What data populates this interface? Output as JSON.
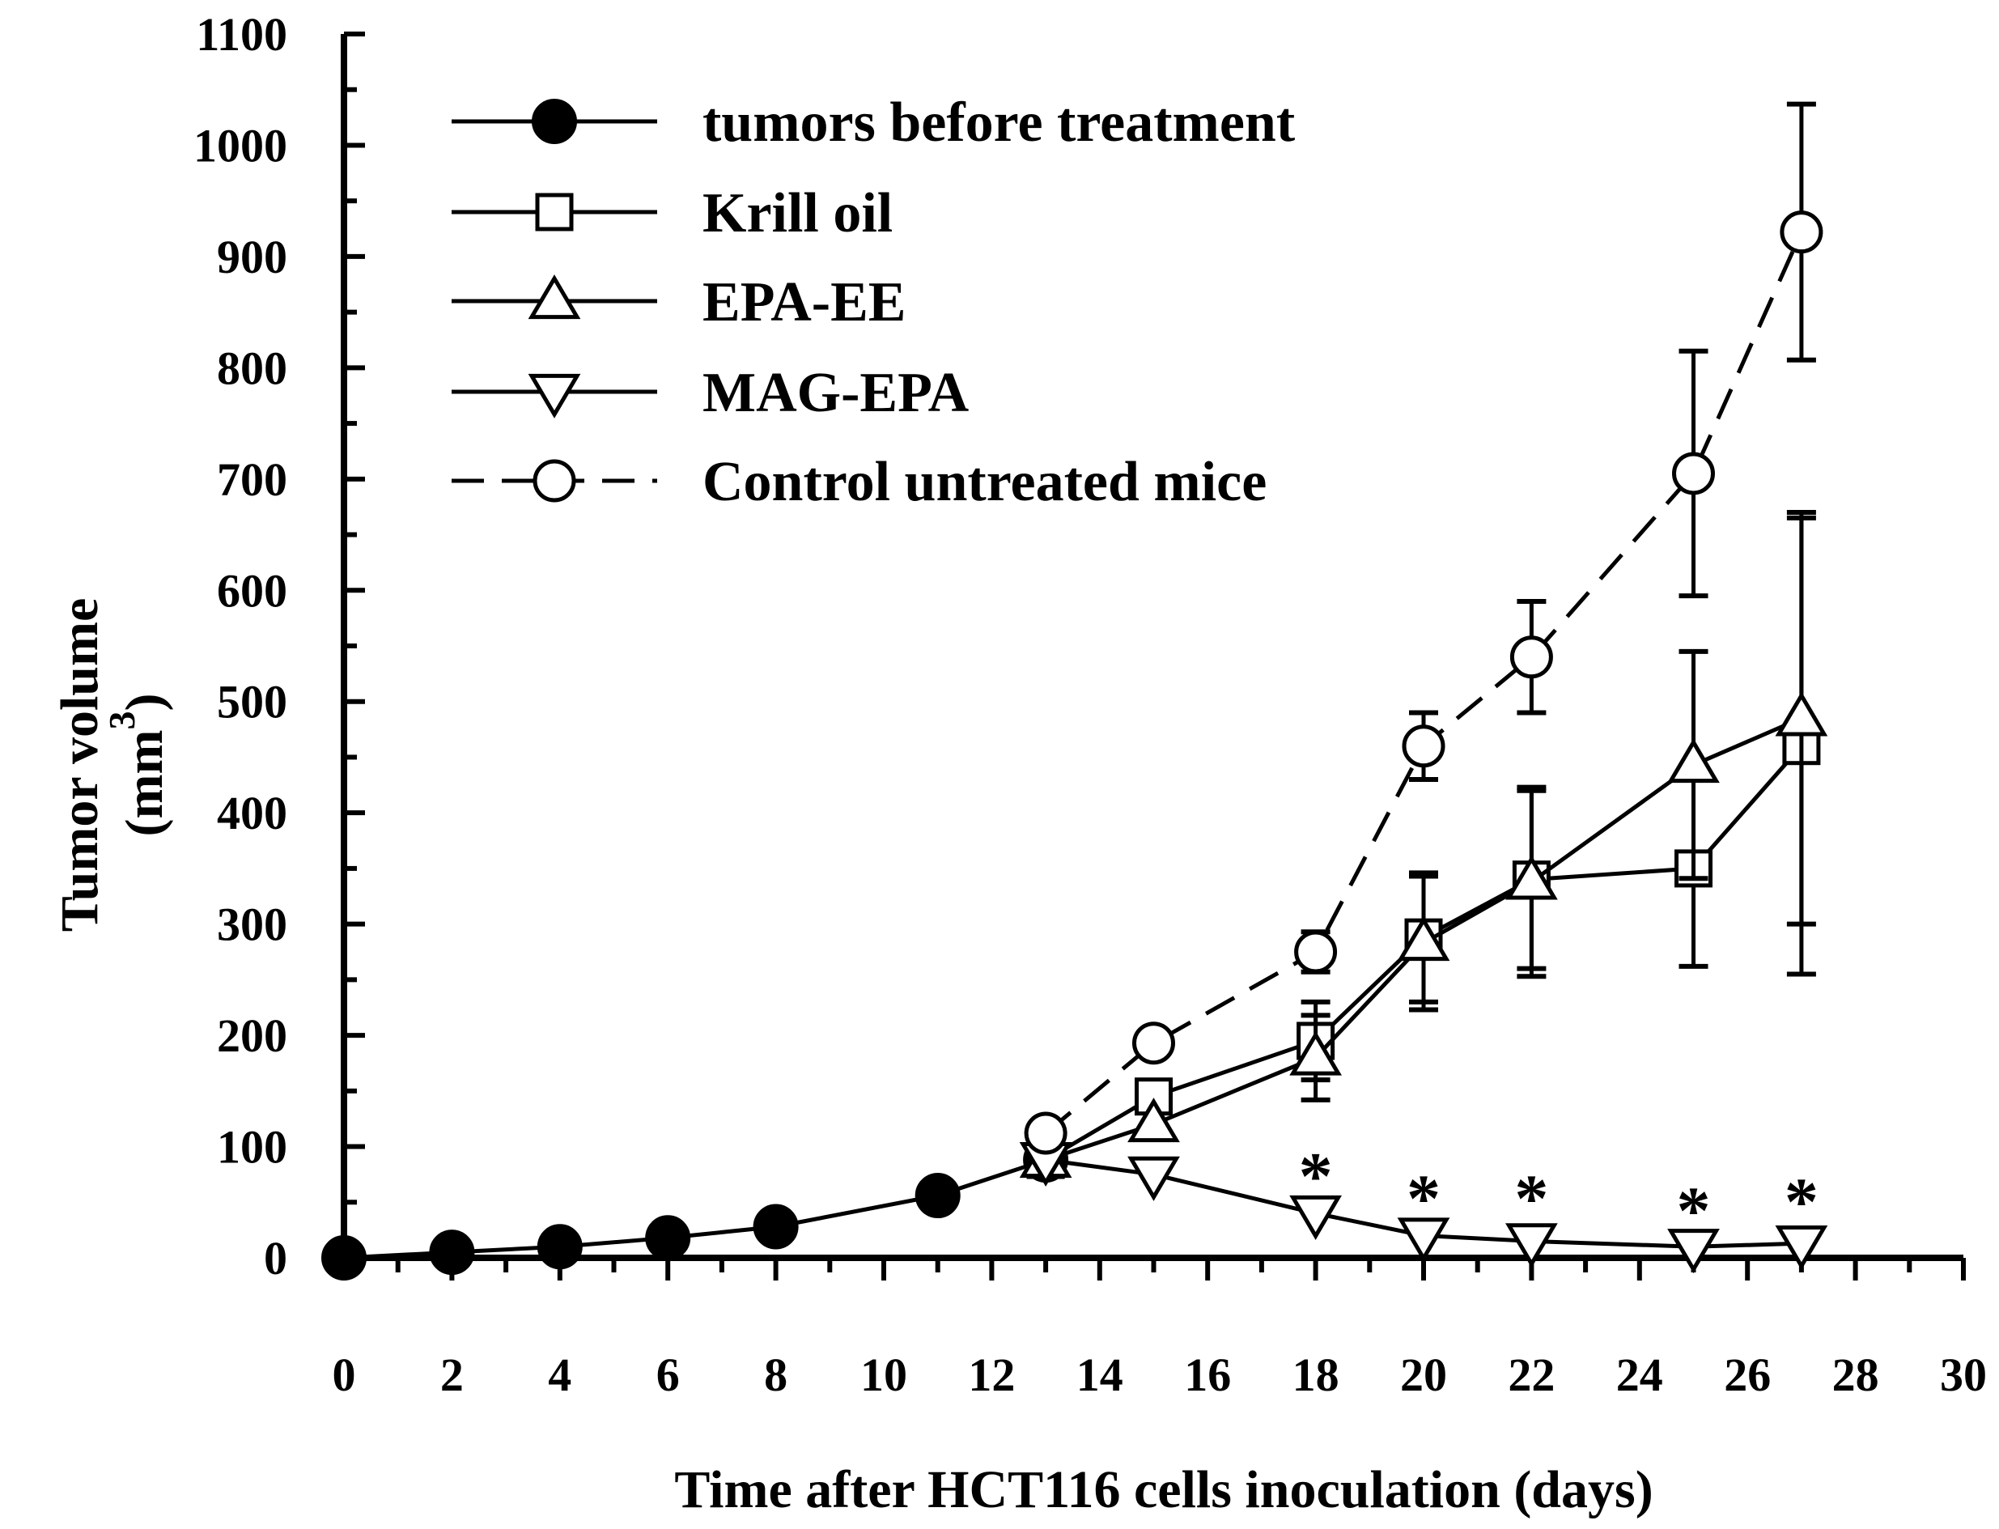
{
  "chart_data": {
    "type": "line",
    "title": "",
    "xlabel": "Time after HCT116 cells inoculation (days)",
    "ylabel": "Tumor volume",
    "ylabel_unit": "(mm",
    "ylabel_unit_sup": "3",
    "ylabel_unit_close": ")",
    "xlim": [
      0,
      30
    ],
    "ylim": [
      0,
      1100
    ],
    "xticks": [
      0,
      2,
      4,
      6,
      8,
      10,
      12,
      14,
      16,
      18,
      20,
      22,
      24,
      26,
      28,
      30
    ],
    "yticks": [
      0,
      100,
      200,
      300,
      400,
      500,
      600,
      700,
      800,
      900,
      1000,
      1100
    ],
    "legend_position": "top-left",
    "series": [
      {
        "name": "tumors before treatment",
        "marker": "filled-circle",
        "line": "solid",
        "x": [
          0,
          2,
          4,
          6,
          8,
          11,
          13
        ],
        "y": [
          0,
          5,
          10,
          18,
          28,
          56,
          88
        ]
      },
      {
        "name": "Krill oil",
        "marker": "open-square",
        "line": "solid",
        "x": [
          13,
          15,
          18,
          20,
          22,
          25,
          27
        ],
        "y": [
          88,
          145,
          195,
          288,
          340,
          350,
          460
        ],
        "err": [
          0,
          0,
          35,
          58,
          80,
          88,
          205
        ]
      },
      {
        "name": "EPA-EE",
        "marker": "open-triangle-up",
        "line": "solid",
        "x": [
          13,
          15,
          18,
          20,
          22,
          25,
          27
        ],
        "y": [
          88,
          120,
          180,
          283,
          338,
          443,
          485
        ],
        "err": [
          0,
          0,
          38,
          60,
          85,
          102,
          185
        ]
      },
      {
        "name": "MAG-EPA",
        "marker": "open-triangle-down",
        "line": "solid",
        "x": [
          13,
          15,
          18,
          20,
          22,
          25,
          27
        ],
        "y": [
          88,
          75,
          40,
          20,
          15,
          10,
          13
        ],
        "err": [
          0,
          0,
          0,
          0,
          0,
          0,
          0
        ]
      },
      {
        "name": "Control untreated mice",
        "marker": "open-circle",
        "line": "dashed",
        "x": [
          13,
          15,
          18,
          20,
          22,
          25,
          27
        ],
        "y": [
          112,
          193,
          275,
          460,
          540,
          705,
          922
        ],
        "err": [
          0,
          0,
          18,
          30,
          50,
          110,
          115
        ]
      }
    ],
    "significance": {
      "symbol": "*",
      "x": [
        18,
        20,
        22,
        25,
        27
      ],
      "y": [
        88,
        68,
        68,
        57,
        65
      ]
    }
  }
}
